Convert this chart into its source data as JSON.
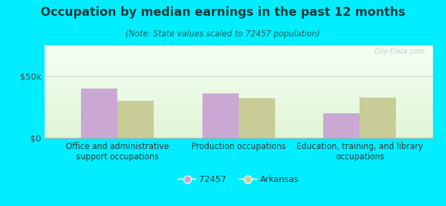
{
  "title": "Occupation by median earnings in the past 12 months",
  "subtitle": "(Note: State values scaled to 72457 population)",
  "categories": [
    "Office and administrative\nsupport occupations",
    "Production occupations",
    "Education, training, and library\noccupations"
  ],
  "values_72457": [
    40000,
    36000,
    20000
  ],
  "values_arkansas": [
    30000,
    32000,
    33000
  ],
  "bar_color_72457": "#c9a8d4",
  "bar_color_arkansas": "#c8cc96",
  "background_outer": "#00eeff",
  "ylabel_ticks": [
    "$0",
    "$50k"
  ],
  "ytick_values": [
    0,
    50000
  ],
  "ylim": [
    0,
    75000
  ],
  "legend_label_1": "72457",
  "legend_label_2": "Arkansas",
  "watermark": "City-Data.com",
  "bar_width": 0.3,
  "group_positions": [
    0,
    1,
    2
  ],
  "title_color": "#1a3a3a",
  "subtitle_color": "#2a5a5a"
}
